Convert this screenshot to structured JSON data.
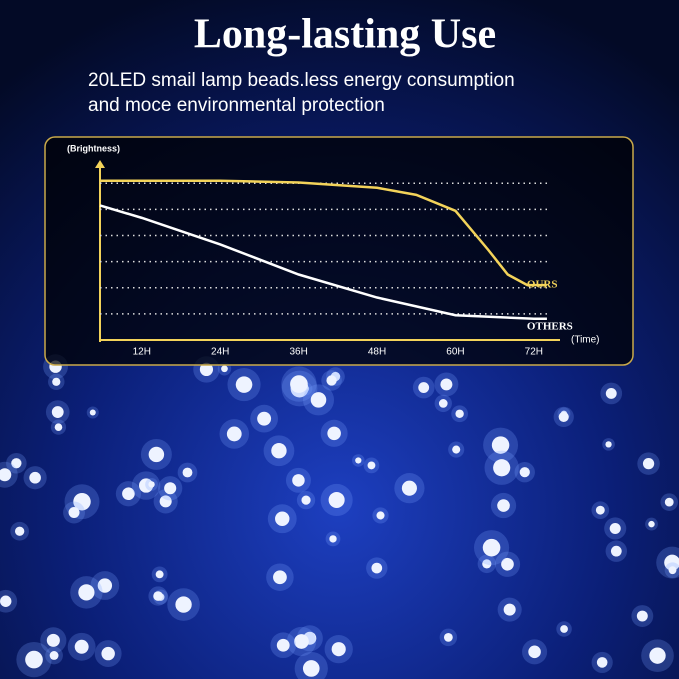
{
  "chart_data": {
    "type": "line",
    "title": "Long-lasting Use",
    "subtitle": [
      "20LED smail lamp beads.less energy consumption",
      "and moce environmental protection"
    ],
    "ylabel": "(Brightness)",
    "xlabel": "(Time)",
    "xlim": [
      5.6,
      76
    ],
    "xticks": [
      {
        "value": 12,
        "label": "12H"
      },
      {
        "value": 24,
        "label": "24H"
      },
      {
        "value": 36,
        "label": "36H"
      },
      {
        "value": 48,
        "label": "48H"
      },
      {
        "value": 60,
        "label": "60H"
      },
      {
        "value": 72,
        "label": "72H"
      }
    ],
    "ylim": [
      0,
      100
    ],
    "grid": true,
    "series": [
      {
        "name": "OURS",
        "color": "#f3d35a",
        "x": [
          5.6,
          24,
          36,
          48,
          54,
          60,
          65,
          68,
          71,
          74
        ],
        "values": [
          90,
          90,
          89,
          86,
          82,
          73,
          51,
          37,
          31,
          31
        ]
      },
      {
        "name": "OTHERS",
        "color": "#ffffff",
        "x": [
          5.6,
          12,
          24,
          36,
          48,
          60,
          72,
          74
        ],
        "values": [
          76,
          69,
          54,
          37,
          24,
          14,
          12,
          12
        ]
      }
    ]
  }
}
